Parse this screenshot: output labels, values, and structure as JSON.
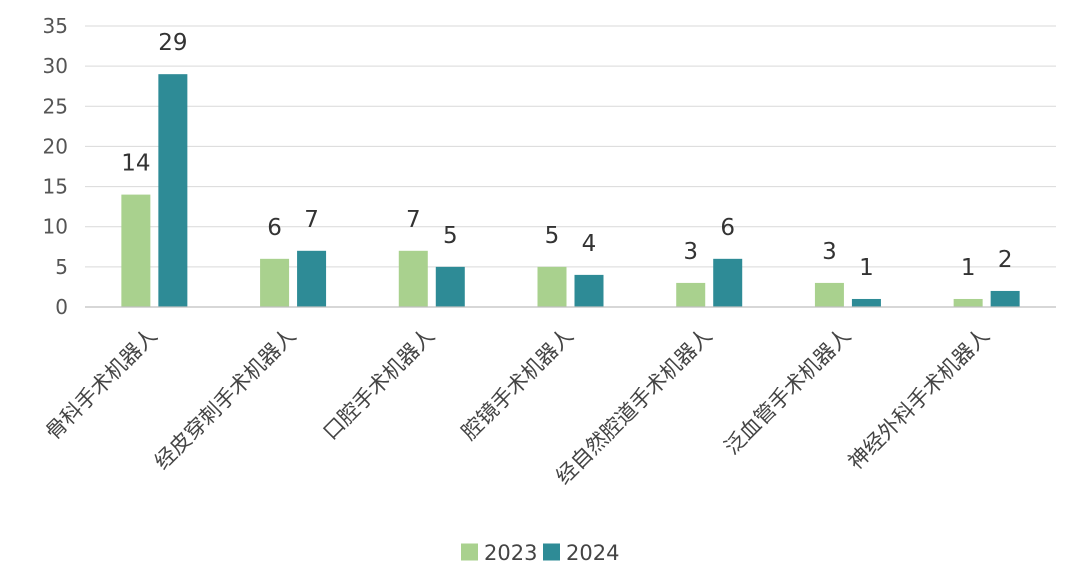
{
  "chart_data": {
    "type": "bar",
    "title": "",
    "xlabel": "",
    "ylabel": "",
    "categories": [
      "骨科手术机器人",
      "经皮穿刺手术机器人",
      "口腔手术机器人",
      "腔镜手术机器人",
      "经自然腔道手术机器人",
      "泛血管手术机器人",
      "神经外科手术机器人"
    ],
    "series": [
      {
        "name": "2023",
        "color": "#a9d18e",
        "values": [
          14,
          6,
          7,
          5,
          3,
          3,
          1
        ]
      },
      {
        "name": "2024",
        "color": "#2e8b96",
        "values": [
          29,
          7,
          5,
          4,
          6,
          1,
          2
        ]
      }
    ],
    "ylim": [
      0,
      35
    ],
    "yticks": [
      0,
      5,
      10,
      15,
      20,
      25,
      30,
      35
    ],
    "grid": true,
    "legend_position": "bottom-center",
    "data_labels": true
  }
}
